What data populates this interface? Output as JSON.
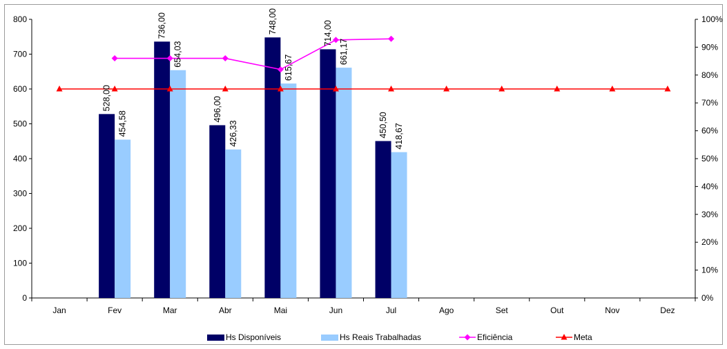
{
  "chart_data": {
    "type": "bar",
    "title": "",
    "xlabel": "",
    "ylabel": "",
    "categories": [
      "Jan",
      "Fev",
      "Mar",
      "Abr",
      "Mai",
      "Jun",
      "Jul",
      "Ago",
      "Set",
      "Out",
      "Nov",
      "Dez"
    ],
    "ylim": [
      0,
      800
    ],
    "yticks": [
      "0",
      "100",
      "200",
      "300",
      "400",
      "500",
      "600",
      "700",
      "800"
    ],
    "y2lim": [
      0,
      1
    ],
    "y2ticks": [
      "0%",
      "10%",
      "20%",
      "30%",
      "40%",
      "50%",
      "60%",
      "70%",
      "80%",
      "90%",
      "100%"
    ],
    "grid": false,
    "legend_position": "bottom",
    "series": [
      {
        "name": "Hs Disponíveis",
        "type": "bar",
        "axis": "left",
        "color": "#000066",
        "values": [
          null,
          528.0,
          736.0,
          496.0,
          748.0,
          714.0,
          450.5,
          null,
          null,
          null,
          null,
          null
        ],
        "labels": [
          "",
          "528,00",
          "736,00",
          "496,00",
          "748,00",
          "714,00",
          "450,50",
          "",
          "",
          "",
          "",
          ""
        ]
      },
      {
        "name": "Hs Reais Trabalhadas",
        "type": "bar",
        "axis": "left",
        "color": "#99ccff",
        "values": [
          null,
          454.58,
          654.03,
          426.33,
          615.67,
          661.17,
          418.67,
          null,
          null,
          null,
          null,
          null
        ],
        "labels": [
          "",
          "454,58",
          "654,03",
          "426,33",
          "615,67",
          "661,17",
          "418,67",
          "",
          "",
          "",
          "",
          ""
        ]
      },
      {
        "name": "Eficiência",
        "type": "line",
        "axis": "right",
        "color": "#ff00ff",
        "marker": "diamond",
        "values": [
          null,
          0.86,
          0.86,
          0.86,
          0.82,
          0.926,
          0.93,
          null,
          null,
          null,
          null,
          null
        ]
      },
      {
        "name": "Meta",
        "type": "line",
        "axis": "right",
        "color": "#ff0000",
        "marker": "triangle",
        "values": [
          0.75,
          0.75,
          0.75,
          0.75,
          0.75,
          0.75,
          0.75,
          0.75,
          0.75,
          0.75,
          0.75,
          0.75
        ]
      }
    ]
  }
}
